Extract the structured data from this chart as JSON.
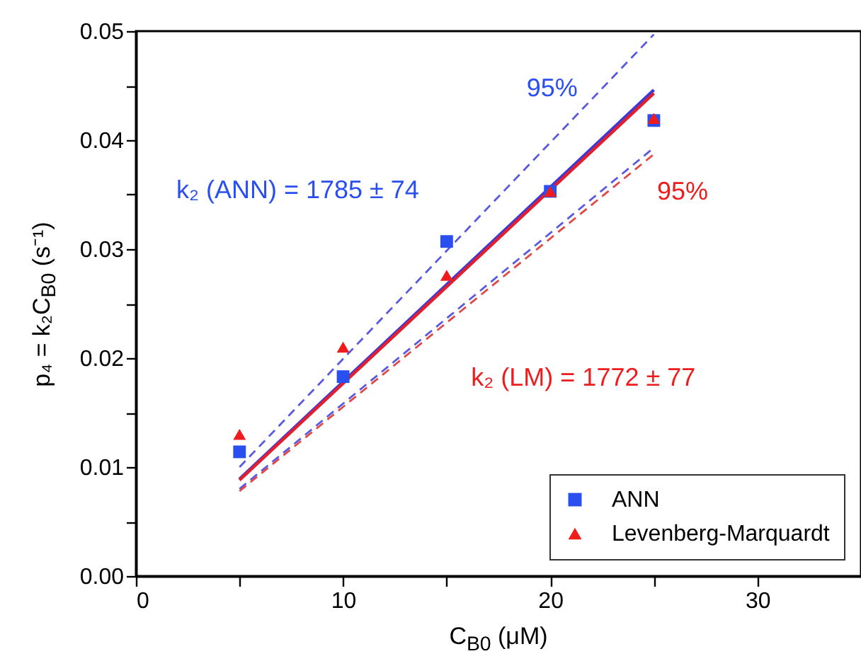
{
  "chart_data": {
    "type": "scatter",
    "xlabel": "C$_{B0}$ (μM)",
    "ylabel": "p₄ = k₂C$_{B0}$ (s⁻¹)",
    "xlim": [
      0,
      35
    ],
    "xticks": [
      0,
      {
        "value": 5,
        "label": null
      },
      10,
      {
        "value": 15,
        "label": null
      },
      20,
      {
        "value": 25,
        "label": null
      },
      30
    ],
    "ylim": [
      0,
      0.05
    ],
    "yticks": [
      {
        "value": 0,
        "label": "0.00"
      },
      {
        "value": 0.005,
        "label": null
      },
      0.01,
      {
        "value": 0.015,
        "label": null
      },
      0.02,
      {
        "value": 0.025,
        "label": null
      },
      0.03,
      {
        "value": 0.035,
        "label": null
      },
      0.04,
      {
        "value": 0.045,
        "label": null
      },
      0.05
    ],
    "grid": false,
    "legend": "bottom right",
    "series": [
      {
        "name": "ANN",
        "marker": "square",
        "color": "#2a4ff0",
        "x": [
          5,
          10,
          15,
          20,
          25
        ],
        "values": [
          0.0114,
          0.0183,
          0.0307,
          0.0353,
          0.0418
        ]
      },
      {
        "name": "Levenberg-Marquardt",
        "marker": "triangle",
        "color": "#ee1c1c",
        "x": [
          5,
          10,
          15,
          20,
          25
        ],
        "values": [
          0.013,
          0.021,
          0.0276,
          0.0353,
          0.042
        ]
      },
      {
        "type": "line",
        "line_style": "solid",
        "color": "#3a3ad8",
        "x": [
          5,
          25
        ],
        "values": [
          0.0089,
          0.0446
        ]
      },
      {
        "type": "line",
        "line_style": "solid",
        "color": "#e02030",
        "x": [
          5,
          25
        ],
        "values": [
          0.0088,
          0.0443
        ]
      },
      {
        "type": "line",
        "line_style": "dashed",
        "color": "#5a5ae0",
        "x": [
          5,
          25
        ],
        "values": [
          0.01,
          0.0497
        ]
      },
      {
        "type": "line",
        "line_style": "dashed",
        "color": "#5a5ae0",
        "x": [
          5,
          25
        ],
        "values": [
          0.008,
          0.0393
        ]
      },
      {
        "type": "line",
        "line_style": "dashed",
        "color": "#e04848",
        "x": [
          5,
          25
        ],
        "values": [
          0.0078,
          0.0387
        ]
      }
    ],
    "annotations": [
      "k₂ (ANN) = 1785 ± 74",
      "95%",
      "95%",
      "k₂ (LM) = 1772 ± 77"
    ]
  }
}
